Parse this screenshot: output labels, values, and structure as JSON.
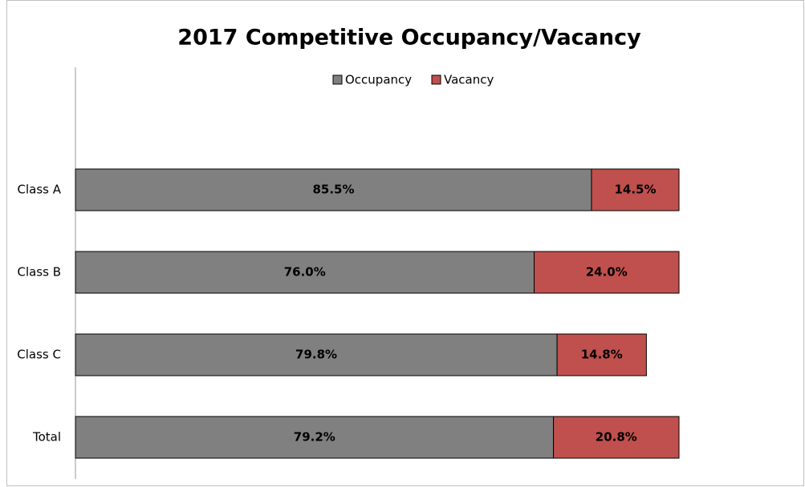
{
  "chart_data": {
    "type": "stacked-bar-horizontal",
    "title": "2017 Competitive Occupancy/Vacancy",
    "categories": [
      "Class A",
      "Class B",
      "Class C",
      "Total"
    ],
    "series": [
      {
        "name": "Occupancy",
        "color": "#808080",
        "values": [
          85.5,
          76.0,
          79.8,
          79.2
        ],
        "value_labels": [
          "85.5%",
          "76.0%",
          "79.8%",
          "79.2%"
        ]
      },
      {
        "name": "Vacancy",
        "color": "#c0504d",
        "values": [
          14.5,
          24.0,
          14.8,
          20.8
        ],
        "value_labels": [
          "14.5%",
          "24.0%",
          "14.8%",
          "20.8%"
        ]
      }
    ],
    "legend": "top"
  }
}
